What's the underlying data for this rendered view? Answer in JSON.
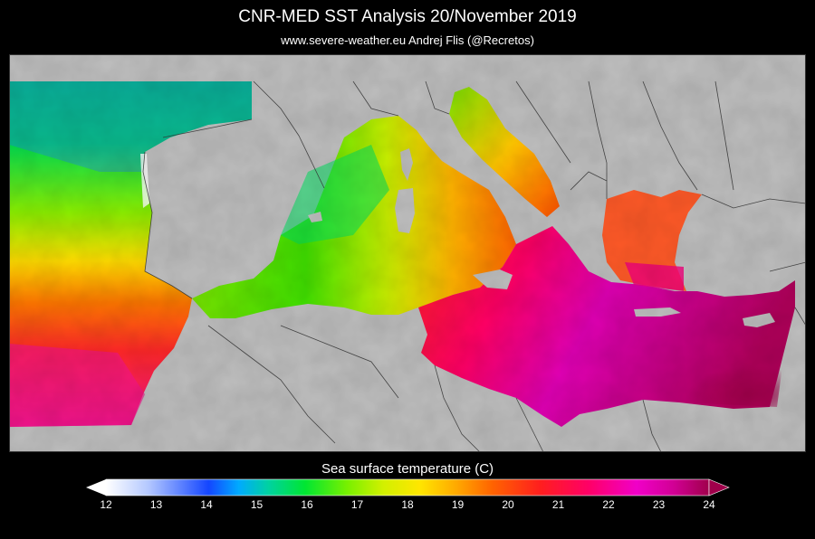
{
  "header": {
    "title": "CNR-MED SST Analysis  20/November 2019",
    "subtitle": "www.severe-weather.eu   Andrej Flis (@Recretos)"
  },
  "colors": {
    "land": "#bfbfbf",
    "background": "#000000",
    "border_lines": "#333333",
    "colorbar": [
      "#ffffff",
      "#b4c8ff",
      "#1446ff",
      "#00aaff",
      "#00d2a0",
      "#00e632",
      "#78f000",
      "#d2f000",
      "#ffe600",
      "#ffaa00",
      "#ff6400",
      "#ff1e1e",
      "#ff0066",
      "#f000c8",
      "#d20096",
      "#a0004b"
    ]
  },
  "legend": {
    "title": "Sea surface temperature (C)",
    "ticks": [
      "12",
      "13",
      "14",
      "15",
      "16",
      "17",
      "18",
      "19",
      "20",
      "21",
      "22",
      "23",
      "24"
    ]
  }
}
